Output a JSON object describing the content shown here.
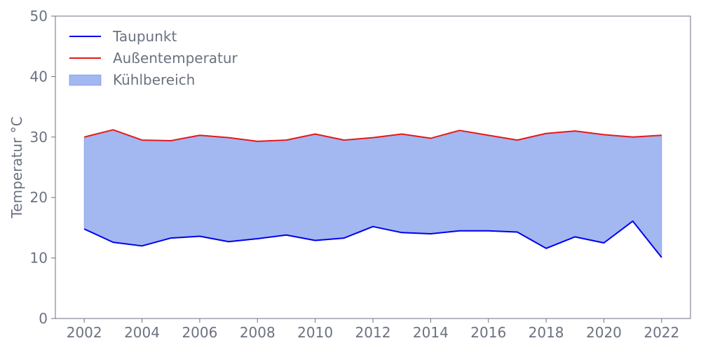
{
  "chart_data": {
    "type": "line",
    "x": [
      2002,
      2003,
      2004,
      2005,
      2006,
      2007,
      2008,
      2009,
      2010,
      2011,
      2012,
      2013,
      2014,
      2015,
      2016,
      2017,
      2018,
      2019,
      2020,
      2021,
      2022
    ],
    "series": [
      {
        "name": "Taupunkt",
        "color": "#0000ee",
        "values": [
          14.8,
          12.6,
          12.0,
          13.3,
          13.6,
          12.7,
          13.2,
          13.8,
          12.9,
          13.3,
          15.2,
          14.2,
          14.0,
          14.5,
          14.5,
          14.3,
          11.6,
          13.5,
          12.5,
          16.1,
          10.1
        ]
      },
      {
        "name": "Außentemperatur",
        "color": "#e31a1c",
        "values": [
          30.0,
          31.2,
          29.5,
          29.4,
          30.3,
          29.9,
          29.3,
          29.5,
          30.5,
          29.5,
          29.9,
          30.5,
          29.8,
          31.1,
          30.3,
          29.5,
          30.6,
          31.0,
          30.4,
          30.0,
          30.3
        ]
      }
    ],
    "band": {
      "name": "Kühlbereich",
      "color": "#6a8ae6",
      "from_series": "Taupunkt",
      "to_series": "Außentemperatur"
    },
    "xlabel": "",
    "ylabel": "Temperatur °C",
    "ylim": [
      0,
      50
    ],
    "xlim": [
      2001,
      2023
    ],
    "yticks": [
      "0",
      "10",
      "20",
      "30",
      "40",
      "50"
    ],
    "xticks": [
      "2002",
      "2004",
      "2006",
      "2008",
      "2010",
      "2012",
      "2014",
      "2016",
      "2018",
      "2020",
      "2022"
    ],
    "grid": false,
    "legend_position": "top-left",
    "legend": [
      {
        "label": "Taupunkt",
        "kind": "line",
        "color": "#0000ee"
      },
      {
        "label": "Außentemperatur",
        "kind": "line",
        "color": "#e31a1c"
      },
      {
        "label": "Kühlbereich",
        "kind": "patch",
        "color": "#6a8ae6"
      }
    ]
  }
}
